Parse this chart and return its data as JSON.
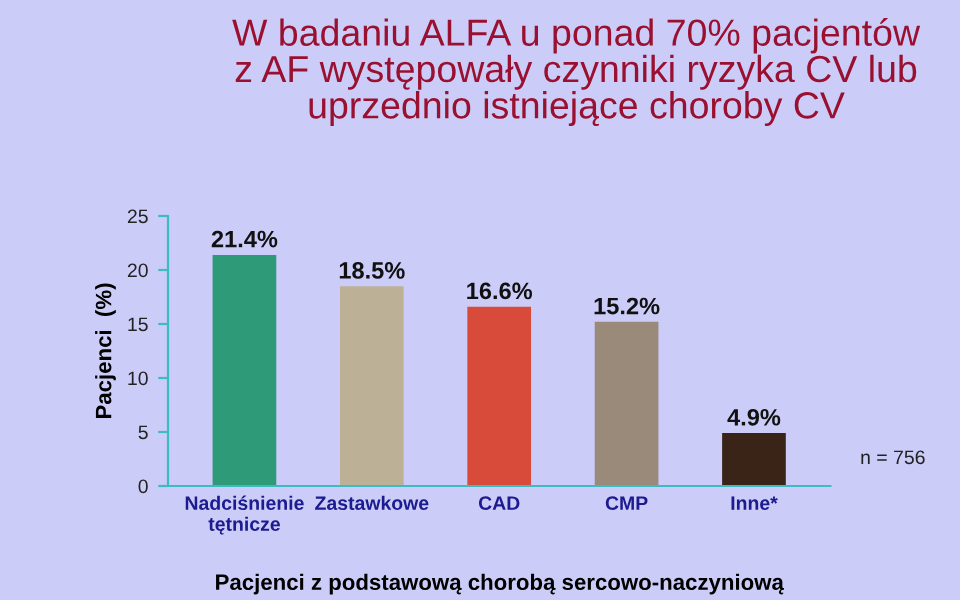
{
  "chart_data": {
    "type": "bar",
    "title": "W badaniu ALFA u ponad 70% pacjentów\nz AF występowały czynniki ryzyka CV lub\nuprzednio istniejące choroby CV",
    "categories": [
      "Nadciśnienie\ntętnicze",
      "Zastawkowe",
      "CAD",
      "CMP",
      "Inne*"
    ],
    "values": [
      21.4,
      18.5,
      16.6,
      15.2,
      4.9
    ],
    "colors": [
      "#2e9a78",
      "#bcb096",
      "#d84a3a",
      "#9a8a7a",
      "#3a2418"
    ],
    "value_labels": [
      "21.4%",
      "18.5%",
      "16.6%",
      "15.2%",
      "4.9%"
    ],
    "ylabel": "Pacjenci  (%)",
    "xlabel": "Pacjenci z podstawową chorobą sercowo-naczyniową",
    "ylim": [
      0,
      25
    ],
    "yticks": [
      0,
      5,
      10,
      15,
      20,
      25
    ],
    "grid": false,
    "annotations": [
      "n = 756"
    ]
  }
}
